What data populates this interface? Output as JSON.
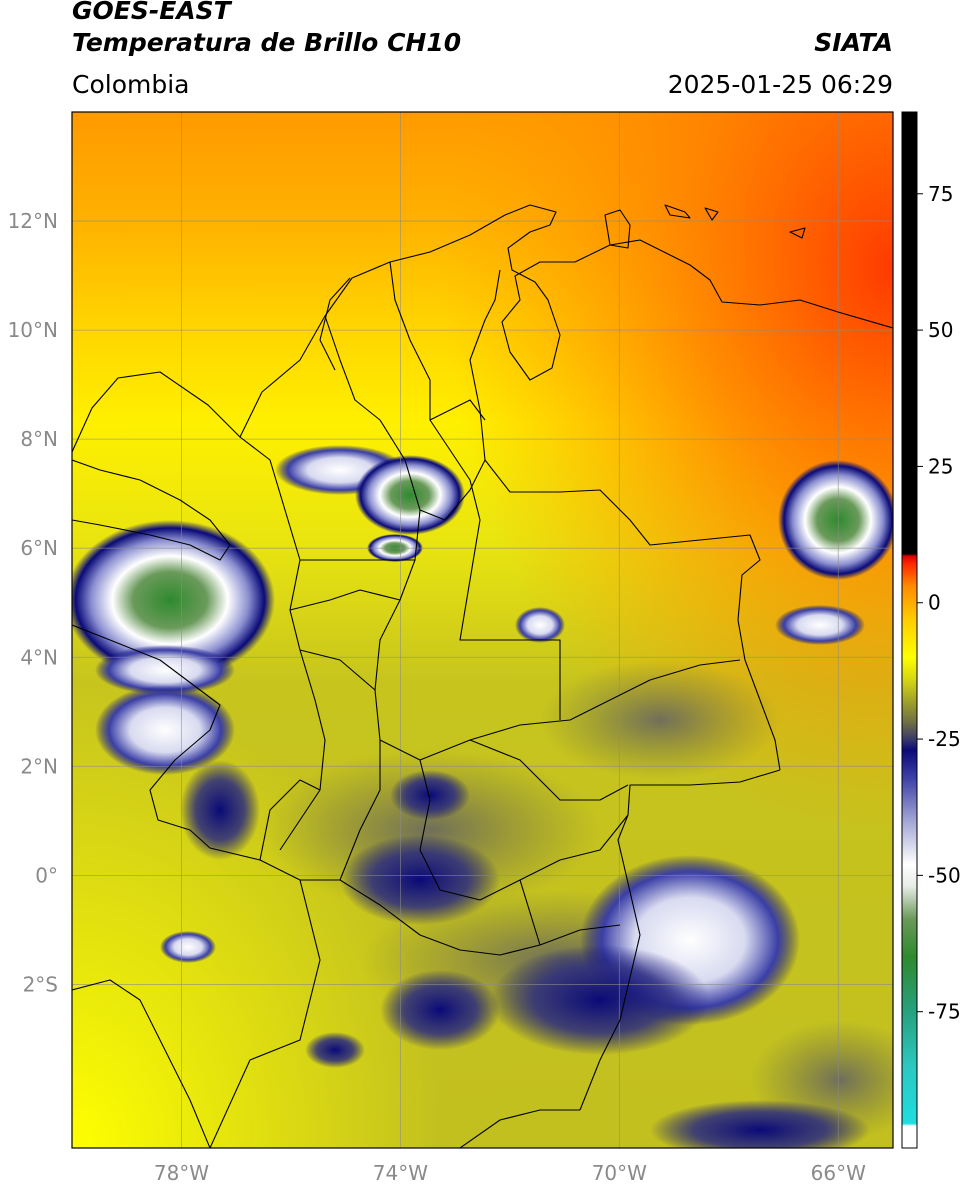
{
  "header": {
    "satellite": "GOES-EAST",
    "product": "Temperatura de Brillo CH10",
    "region": "Colombia",
    "agency": "SIATA",
    "datetime": "2025-01-25 06:29"
  },
  "map": {
    "lon_range": [
      -80,
      -65
    ],
    "lat_range": [
      -5,
      14
    ],
    "lon_ticks": [
      {
        "value": -78,
        "label": "78°W"
      },
      {
        "value": -74,
        "label": "74°W"
      },
      {
        "value": -70,
        "label": "70°W"
      },
      {
        "value": -66,
        "label": "66°W"
      }
    ],
    "lat_ticks": [
      {
        "value": 12,
        "label": "12°N"
      },
      {
        "value": 10,
        "label": "10°N"
      },
      {
        "value": 8,
        "label": "8°N"
      },
      {
        "value": 6,
        "label": "6°N"
      },
      {
        "value": 4,
        "label": "4°N"
      },
      {
        "value": 2,
        "label": "2°N"
      },
      {
        "value": 0,
        "label": "0°"
      },
      {
        "value": -2,
        "label": "2°S"
      }
    ],
    "gridlines": true
  },
  "colorbar": {
    "range": [
      -100,
      90
    ],
    "ticks": [
      {
        "value": 75,
        "label": "75"
      },
      {
        "value": 50,
        "label": "50"
      },
      {
        "value": 25,
        "label": "25"
      },
      {
        "value": 0,
        "label": "0"
      },
      {
        "value": -25,
        "label": "-25"
      },
      {
        "value": -50,
        "label": "-50"
      },
      {
        "value": -75,
        "label": "-75"
      }
    ],
    "stops": [
      {
        "value": -100,
        "color": "#ffffff"
      },
      {
        "value": -96,
        "color": "#ffffff"
      },
      {
        "value": -95.5,
        "color": "#1fdde0"
      },
      {
        "value": -85,
        "color": "#2cc8c0"
      },
      {
        "value": -75,
        "color": "#27a17f"
      },
      {
        "value": -65,
        "color": "#2e8a2e"
      },
      {
        "value": -58,
        "color": "#6a9a5a"
      },
      {
        "value": -52,
        "color": "#e8ece6"
      },
      {
        "value": -48,
        "color": "#ffffff"
      },
      {
        "value": -40,
        "color": "#a2a6d4"
      },
      {
        "value": -32,
        "color": "#3b3fa6"
      },
      {
        "value": -27,
        "color": "#0a0a78"
      },
      {
        "value": -25,
        "color": "#3a3a6a"
      },
      {
        "value": -22,
        "color": "#6e6e44"
      },
      {
        "value": -18,
        "color": "#a2a22a"
      },
      {
        "value": -14,
        "color": "#d7d712"
      },
      {
        "value": -10,
        "color": "#ffff00"
      },
      {
        "value": -3,
        "color": "#ffcc00"
      },
      {
        "value": 3,
        "color": "#ff8c00"
      },
      {
        "value": 7,
        "color": "#ff2a00"
      },
      {
        "value": 8.5,
        "color": "#e00000"
      },
      {
        "value": 9,
        "color": "#000000"
      },
      {
        "value": 90,
        "color": "#000000"
      }
    ]
  }
}
